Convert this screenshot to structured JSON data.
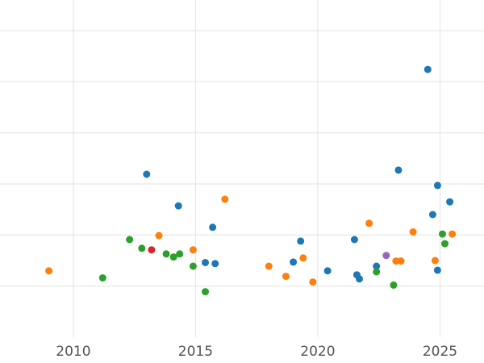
{
  "chart": {
    "title": "",
    "x_axis": {
      "tick_labels": [
        "2010",
        "2015",
        "2020",
        "2025"
      ]
    },
    "y_axis": {
      "tick_labels": []
    }
  },
  "style": {
    "background": "#ffffff",
    "gridline_color": "#e3e3e3",
    "tick_label_color": "#545454",
    "point_radius": 4.5
  },
  "chart_data": {
    "type": "scatter",
    "title": "",
    "xlabel": "",
    "ylabel": "",
    "xlim": [
      2007.0,
      2026.8
    ],
    "ylim": [
      -1.0,
      5.6
    ],
    "x_ticks": [
      2010,
      2015,
      2020,
      2025
    ],
    "y_gridlines": [
      0,
      1,
      2,
      3,
      4,
      5
    ],
    "grid": true,
    "legend": "none",
    "series": [
      {
        "name": "blue",
        "color": "#1f77b4",
        "points": [
          [
            2013.0,
            2.19
          ],
          [
            2014.3,
            1.57
          ],
          [
            2015.4,
            0.46
          ],
          [
            2015.7,
            1.15
          ],
          [
            2015.8,
            0.44
          ],
          [
            2019.0,
            0.47
          ],
          [
            2019.3,
            0.88
          ],
          [
            2020.4,
            0.3
          ],
          [
            2021.5,
            0.91
          ],
          [
            2021.6,
            0.22
          ],
          [
            2021.7,
            0.14
          ],
          [
            2022.4,
            0.39
          ],
          [
            2023.3,
            2.27
          ],
          [
            2024.5,
            4.24
          ],
          [
            2024.7,
            1.4
          ],
          [
            2024.9,
            1.97
          ],
          [
            2024.9,
            0.31
          ],
          [
            2025.4,
            1.65
          ]
        ]
      },
      {
        "name": "orange",
        "color": "#ff7f0e",
        "points": [
          [
            2009.0,
            0.3
          ],
          [
            2013.5,
            0.99
          ],
          [
            2014.9,
            0.71
          ],
          [
            2016.2,
            1.7
          ],
          [
            2018.0,
            0.39
          ],
          [
            2018.7,
            0.19
          ],
          [
            2019.4,
            0.55
          ],
          [
            2019.8,
            0.08
          ],
          [
            2022.1,
            1.23
          ],
          [
            2023.2,
            0.49
          ],
          [
            2023.4,
            0.49
          ],
          [
            2023.9,
            1.06
          ],
          [
            2024.8,
            0.5
          ],
          [
            2025.5,
            1.02
          ]
        ]
      },
      {
        "name": "green",
        "color": "#2ca02c",
        "points": [
          [
            2011.2,
            0.16
          ],
          [
            2012.3,
            0.91
          ],
          [
            2012.8,
            0.74
          ],
          [
            2013.8,
            0.63
          ],
          [
            2014.1,
            0.57
          ],
          [
            2014.35,
            0.63
          ],
          [
            2014.9,
            0.39
          ],
          [
            2015.4,
            -0.11
          ],
          [
            2022.4,
            0.28
          ],
          [
            2023.1,
            0.02
          ],
          [
            2025.1,
            1.02
          ],
          [
            2025.2,
            0.83
          ]
        ]
      },
      {
        "name": "red",
        "color": "#d62728",
        "points": [
          [
            2013.2,
            0.71
          ]
        ]
      },
      {
        "name": "purple",
        "color": "#9467bd",
        "points": [
          [
            2022.8,
            0.6
          ]
        ]
      }
    ]
  }
}
